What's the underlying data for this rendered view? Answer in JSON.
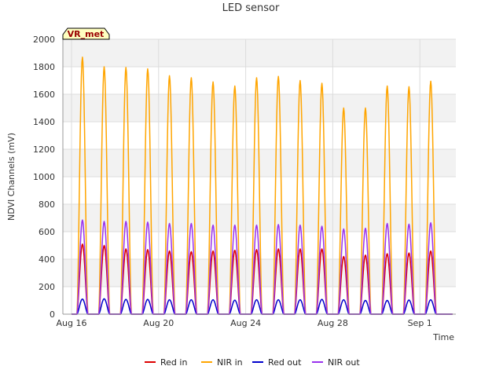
{
  "chart_data": {
    "type": "line",
    "title": "LED sensor",
    "xlabel": "Time",
    "ylabel": "NDVI Channels (mV)",
    "badge": "VR_met",
    "ylim": [
      0,
      2000
    ],
    "yticks": [
      0,
      200,
      400,
      600,
      800,
      1000,
      1200,
      1400,
      1600,
      1800,
      2000
    ],
    "xlim": [
      0,
      17.5
    ],
    "xticks": [
      {
        "label": "Aug 16",
        "day": 0
      },
      {
        "label": "Aug 20",
        "day": 4
      },
      {
        "label": "Aug 24",
        "day": 8
      },
      {
        "label": "Aug 28",
        "day": 12
      },
      {
        "label": "Sep 1",
        "day": 16
      }
    ],
    "grid": true,
    "legend_position": "bottom",
    "days": [
      "Aug 16",
      "Aug 17",
      "Aug 18",
      "Aug 19",
      "Aug 20",
      "Aug 21",
      "Aug 22",
      "Aug 23",
      "Aug 24",
      "Aug 25",
      "Aug 26",
      "Aug 27",
      "Aug 28",
      "Aug 29",
      "Aug 30",
      "Aug 31",
      "Sep 1",
      "Sep 2"
    ],
    "series": [
      {
        "name": "Red in",
        "color": "#dd0000",
        "daily_peaks": [
          510,
          500,
          475,
          470,
          460,
          455,
          460,
          465,
          470,
          475,
          475,
          475,
          420,
          430,
          440,
          445,
          460,
          0
        ]
      },
      {
        "name": "NIR in",
        "color": "#ffa500",
        "daily_peaks": [
          1870,
          1800,
          1795,
          1785,
          1735,
          1720,
          1690,
          1660,
          1720,
          1730,
          1700,
          1680,
          1500,
          1500,
          1660,
          1655,
          1695,
          0
        ]
      },
      {
        "name": "Red out",
        "color": "#0000cc",
        "daily_peaks": [
          110,
          112,
          108,
          108,
          105,
          105,
          105,
          102,
          105,
          105,
          105,
          108,
          105,
          100,
          100,
          103,
          105,
          0
        ]
      },
      {
        "name": "NIR out",
        "color": "#9933ee",
        "daily_peaks": [
          685,
          675,
          675,
          670,
          660,
          660,
          648,
          648,
          648,
          652,
          648,
          640,
          620,
          625,
          660,
          655,
          665,
          0
        ]
      }
    ]
  }
}
